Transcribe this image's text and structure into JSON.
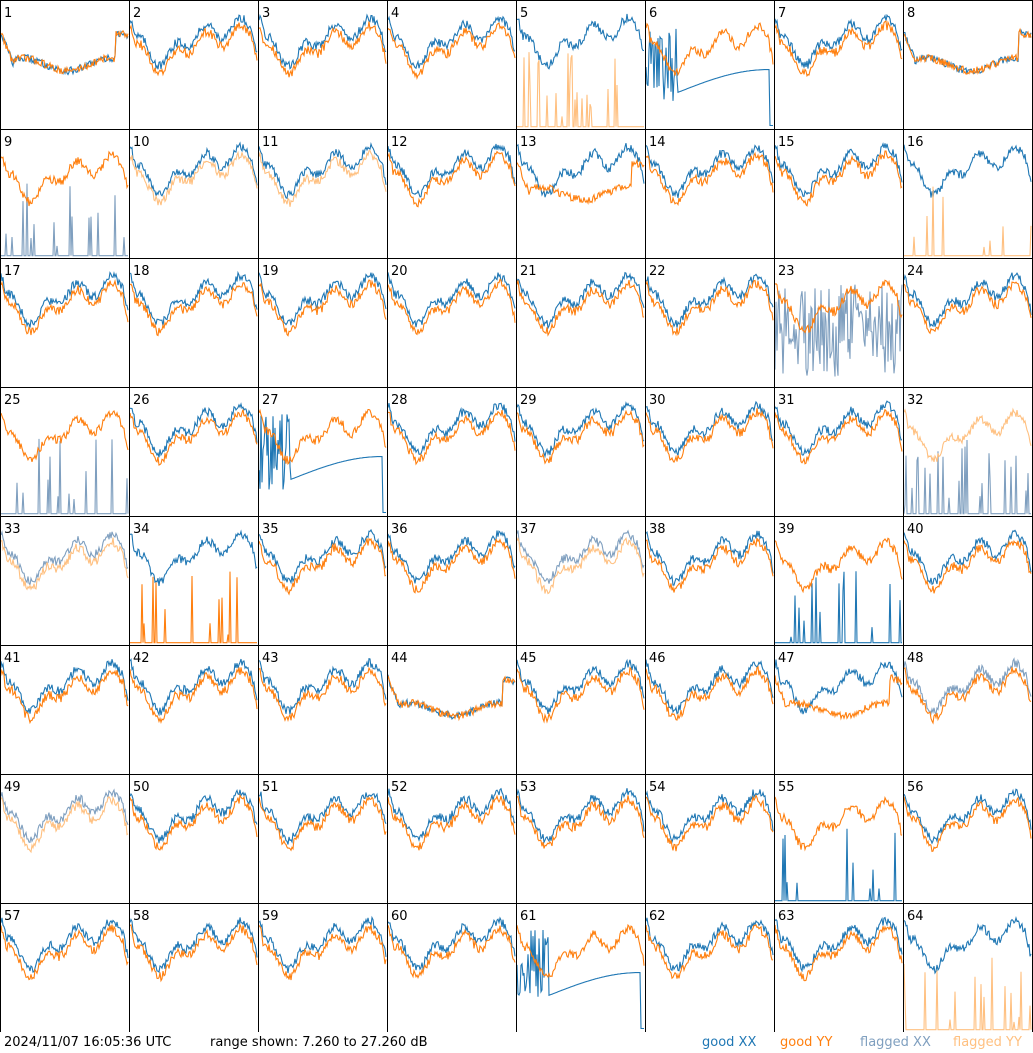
{
  "footer": {
    "timestamp": "2024/11/07 16:05:36 UTC",
    "range": "range shown: 7.260 to 27.260 dB"
  },
  "legend": [
    {
      "label": "good XX",
      "color": "#1f77b4"
    },
    {
      "label": "good YY",
      "color": "#ff7f0e"
    },
    {
      "label": "flagged XX",
      "color": "#7f9fbf"
    },
    {
      "label": "flagged YY",
      "color": "#ffc080"
    }
  ],
  "chart_data": {
    "type": "line",
    "grid": "8x8 small multiples",
    "ylim": [
      7.26,
      27.26
    ],
    "series_names": [
      "good XX",
      "good YY",
      "flagged XX",
      "flagged YY"
    ],
    "panels": [
      {
        "id": 1,
        "xx": "good",
        "yy": "good",
        "xx_shape": "flat",
        "yy_shape": "flat"
      },
      {
        "id": 2,
        "xx": "good",
        "yy": "good",
        "xx_shape": "normal",
        "yy_shape": "normal"
      },
      {
        "id": 3,
        "xx": "good",
        "yy": "good",
        "xx_shape": "normal",
        "yy_shape": "normal"
      },
      {
        "id": 4,
        "xx": "good",
        "yy": "good",
        "xx_shape": "normal",
        "yy_shape": "normal"
      },
      {
        "id": 5,
        "xx": "good",
        "yy": "flagged",
        "xx_shape": "normal",
        "yy_shape": "spiky"
      },
      {
        "id": 6,
        "xx": "good",
        "yy": "good",
        "xx_shape": "dropout",
        "yy_shape": "normal"
      },
      {
        "id": 7,
        "xx": "good",
        "yy": "good",
        "xx_shape": "normal",
        "yy_shape": "normal"
      },
      {
        "id": 8,
        "xx": "good",
        "yy": "good",
        "xx_shape": "flat",
        "yy_shape": "flat"
      },
      {
        "id": 9,
        "xx": "flagged",
        "yy": "good",
        "xx_shape": "spiky",
        "yy_shape": "normal"
      },
      {
        "id": 10,
        "xx": "good",
        "yy": "flagged",
        "xx_shape": "normal",
        "yy_shape": "normal"
      },
      {
        "id": 11,
        "xx": "good",
        "yy": "flagged",
        "xx_shape": "normal",
        "yy_shape": "normal"
      },
      {
        "id": 12,
        "xx": "good",
        "yy": "good",
        "xx_shape": "normal",
        "yy_shape": "normal"
      },
      {
        "id": 13,
        "xx": "good",
        "yy": "good",
        "xx_shape": "normal",
        "yy_shape": "flat"
      },
      {
        "id": 14,
        "xx": "good",
        "yy": "good",
        "xx_shape": "normal",
        "yy_shape": "normal"
      },
      {
        "id": 15,
        "xx": "good",
        "yy": "good",
        "xx_shape": "normal",
        "yy_shape": "normal"
      },
      {
        "id": 16,
        "xx": "good",
        "yy": "flagged",
        "xx_shape": "normal",
        "yy_shape": "spiky"
      },
      {
        "id": 17,
        "xx": "good",
        "yy": "good",
        "xx_shape": "normal",
        "yy_shape": "normal"
      },
      {
        "id": 18,
        "xx": "good",
        "yy": "good",
        "xx_shape": "normal",
        "yy_shape": "normal"
      },
      {
        "id": 19,
        "xx": "good",
        "yy": "good",
        "xx_shape": "normal",
        "yy_shape": "normal"
      },
      {
        "id": 20,
        "xx": "good",
        "yy": "good",
        "xx_shape": "normal",
        "yy_shape": "normal"
      },
      {
        "id": 21,
        "xx": "good",
        "yy": "good",
        "xx_shape": "normal",
        "yy_shape": "normal"
      },
      {
        "id": 22,
        "xx": "good",
        "yy": "good",
        "xx_shape": "normal",
        "yy_shape": "normal"
      },
      {
        "id": 23,
        "xx": "flagged",
        "yy": "good",
        "xx_shape": "noise",
        "yy_shape": "normal"
      },
      {
        "id": 24,
        "xx": "good",
        "yy": "good",
        "xx_shape": "normal",
        "yy_shape": "normal"
      },
      {
        "id": 25,
        "xx": "flagged",
        "yy": "good",
        "xx_shape": "spiky",
        "yy_shape": "normal"
      },
      {
        "id": 26,
        "xx": "good",
        "yy": "good",
        "xx_shape": "normal",
        "yy_shape": "normal"
      },
      {
        "id": 27,
        "xx": "good",
        "yy": "good",
        "xx_shape": "dropout",
        "yy_shape": "normal"
      },
      {
        "id": 28,
        "xx": "good",
        "yy": "good",
        "xx_shape": "normal",
        "yy_shape": "normal"
      },
      {
        "id": 29,
        "xx": "good",
        "yy": "good",
        "xx_shape": "normal",
        "yy_shape": "normal"
      },
      {
        "id": 30,
        "xx": "good",
        "yy": "good",
        "xx_shape": "normal",
        "yy_shape": "normal"
      },
      {
        "id": 31,
        "xx": "good",
        "yy": "good",
        "xx_shape": "normal",
        "yy_shape": "normal"
      },
      {
        "id": 32,
        "xx": "flagged",
        "yy": "flagged",
        "xx_shape": "spiky",
        "yy_shape": "normal"
      },
      {
        "id": 33,
        "xx": "flagged",
        "yy": "flagged",
        "xx_shape": "normal",
        "yy_shape": "normal"
      },
      {
        "id": 34,
        "xx": "good",
        "yy": "good",
        "xx_shape": "normal",
        "yy_shape": "spiky"
      },
      {
        "id": 35,
        "xx": "good",
        "yy": "good",
        "xx_shape": "normal",
        "yy_shape": "normal"
      },
      {
        "id": 36,
        "xx": "good",
        "yy": "good",
        "xx_shape": "normal",
        "yy_shape": "normal"
      },
      {
        "id": 37,
        "xx": "flagged",
        "yy": "flagged",
        "xx_shape": "normal",
        "yy_shape": "normal"
      },
      {
        "id": 38,
        "xx": "good",
        "yy": "good",
        "xx_shape": "normal",
        "yy_shape": "normal"
      },
      {
        "id": 39,
        "xx": "good",
        "yy": "good",
        "xx_shape": "spiky",
        "yy_shape": "normal"
      },
      {
        "id": 40,
        "xx": "good",
        "yy": "good",
        "xx_shape": "normal",
        "yy_shape": "normal"
      },
      {
        "id": 41,
        "xx": "good",
        "yy": "good",
        "xx_shape": "normal",
        "yy_shape": "normal"
      },
      {
        "id": 42,
        "xx": "good",
        "yy": "good",
        "xx_shape": "normal",
        "yy_shape": "normal"
      },
      {
        "id": 43,
        "xx": "good",
        "yy": "good",
        "xx_shape": "normal",
        "yy_shape": "normal"
      },
      {
        "id": 44,
        "xx": "good",
        "yy": "good",
        "xx_shape": "flat",
        "yy_shape": "flat"
      },
      {
        "id": 45,
        "xx": "good",
        "yy": "good",
        "xx_shape": "normal",
        "yy_shape": "normal"
      },
      {
        "id": 46,
        "xx": "good",
        "yy": "good",
        "xx_shape": "normal",
        "yy_shape": "normal"
      },
      {
        "id": 47,
        "xx": "good",
        "yy": "good",
        "xx_shape": "normal",
        "yy_shape": "flat"
      },
      {
        "id": 48,
        "xx": "flagged",
        "yy": "good",
        "xx_shape": "normal",
        "yy_shape": "normal"
      },
      {
        "id": 49,
        "xx": "flagged",
        "yy": "flagged",
        "xx_shape": "normal",
        "yy_shape": "normal"
      },
      {
        "id": 50,
        "xx": "good",
        "yy": "good",
        "xx_shape": "normal",
        "yy_shape": "normal"
      },
      {
        "id": 51,
        "xx": "good",
        "yy": "good",
        "xx_shape": "normal",
        "yy_shape": "normal"
      },
      {
        "id": 52,
        "xx": "good",
        "yy": "good",
        "xx_shape": "normal",
        "yy_shape": "normal"
      },
      {
        "id": 53,
        "xx": "good",
        "yy": "good",
        "xx_shape": "normal",
        "yy_shape": "normal"
      },
      {
        "id": 54,
        "xx": "good",
        "yy": "good",
        "xx_shape": "normal",
        "yy_shape": "normal"
      },
      {
        "id": 55,
        "xx": "good",
        "yy": "good",
        "xx_shape": "spiky",
        "yy_shape": "normal"
      },
      {
        "id": 56,
        "xx": "good",
        "yy": "good",
        "xx_shape": "normal",
        "yy_shape": "normal"
      },
      {
        "id": 57,
        "xx": "good",
        "yy": "good",
        "xx_shape": "normal",
        "yy_shape": "normal"
      },
      {
        "id": 58,
        "xx": "good",
        "yy": "good",
        "xx_shape": "normal",
        "yy_shape": "normal"
      },
      {
        "id": 59,
        "xx": "good",
        "yy": "good",
        "xx_shape": "normal",
        "yy_shape": "normal"
      },
      {
        "id": 60,
        "xx": "good",
        "yy": "good",
        "xx_shape": "normal",
        "yy_shape": "normal"
      },
      {
        "id": 61,
        "xx": "good",
        "yy": "good",
        "xx_shape": "dropout",
        "yy_shape": "normal"
      },
      {
        "id": 62,
        "xx": "good",
        "yy": "good",
        "xx_shape": "normal",
        "yy_shape": "normal"
      },
      {
        "id": 63,
        "xx": "good",
        "yy": "good",
        "xx_shape": "normal",
        "yy_shape": "normal"
      },
      {
        "id": 64,
        "xx": "good",
        "yy": "flagged",
        "xx_shape": "normal",
        "yy_shape": "spiky"
      }
    ]
  }
}
